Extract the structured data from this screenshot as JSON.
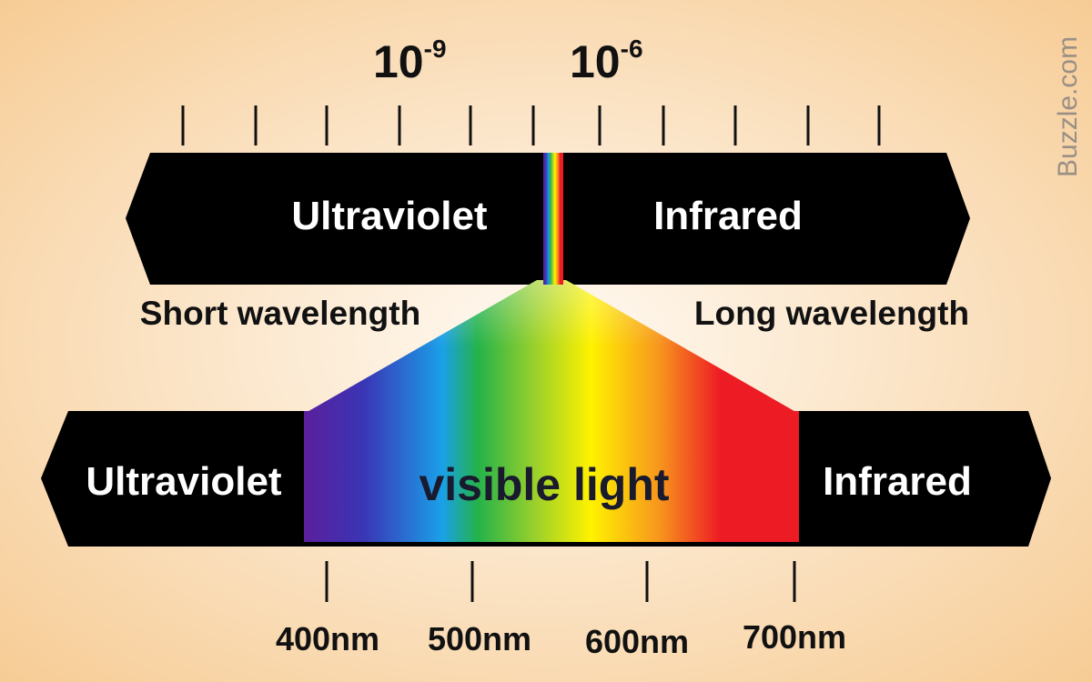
{
  "scale": {
    "exponent_labels": [
      {
        "base": "10",
        "exp": "-9"
      },
      {
        "base": "10",
        "exp": "-6"
      }
    ],
    "tick_count": 11
  },
  "top_band": {
    "left_label": "Ultraviolet",
    "right_label": "Infrared"
  },
  "annotations": {
    "short": "Short wavelength",
    "long": "Long wavelength"
  },
  "bottom_band": {
    "left_label": "Ultraviolet",
    "center_label": "visible light",
    "right_label": "Infrared"
  },
  "nm_scale": {
    "labels": [
      "400nm",
      "500nm",
      "600nm",
      "700nm"
    ]
  },
  "watermark": "Buzzle.com",
  "colors": {
    "band": "#000000",
    "background_center": "#fffaf3",
    "background_edge": "#f6c98f",
    "spectrum": [
      "#5b1f9c",
      "#3a35b5",
      "#1aa0e8",
      "#23b24b",
      "#9dd12a",
      "#fff200",
      "#f7941d",
      "#ed1c24"
    ]
  }
}
